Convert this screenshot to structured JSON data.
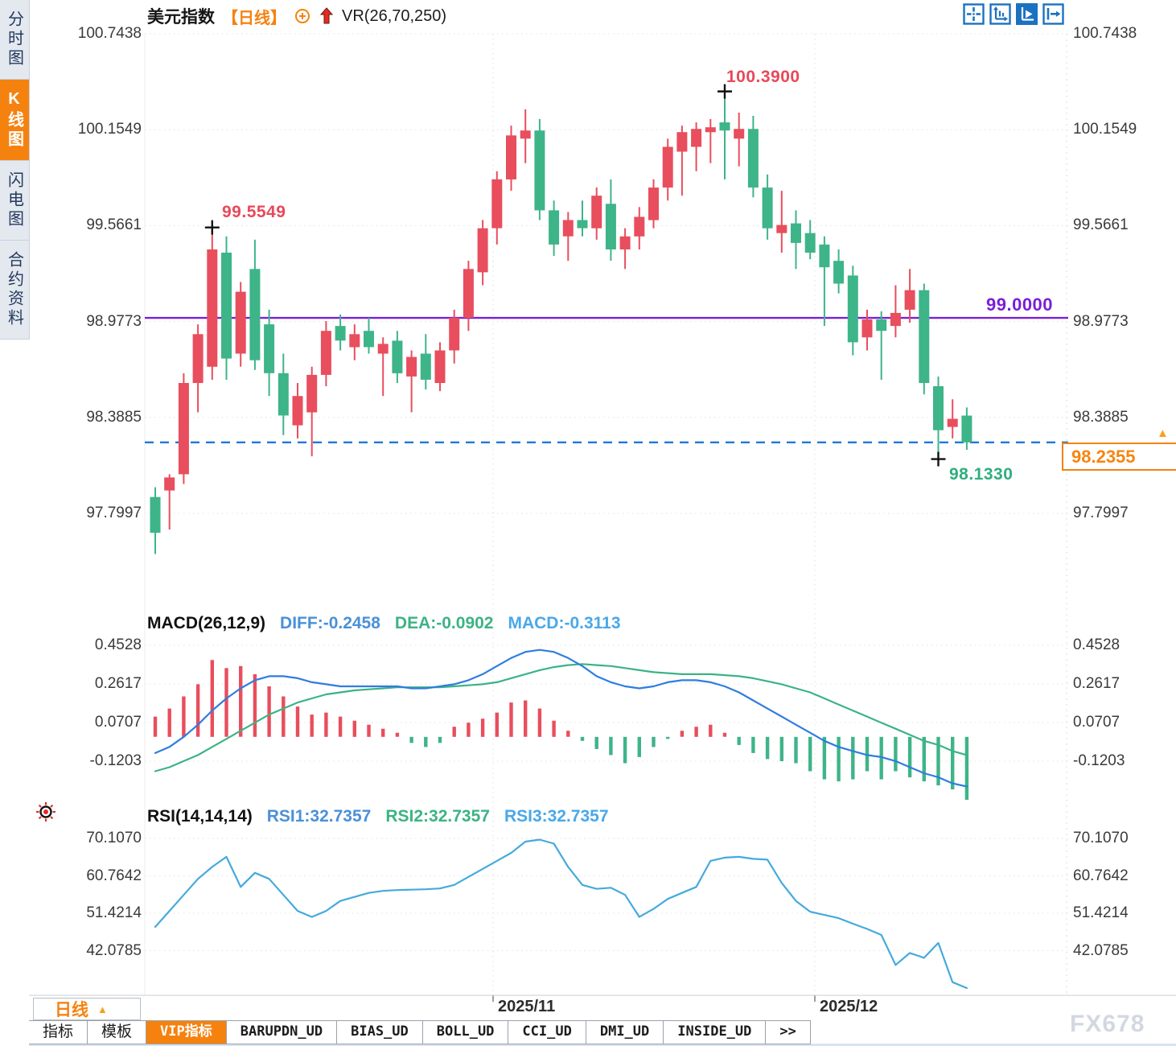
{
  "header": {
    "title": "美元指数",
    "period_tag": "【日线】",
    "vr_label": "VR(26,70,250)"
  },
  "icons": {
    "up_triangle": "▲"
  },
  "sidebar": {
    "tabs": [
      {
        "label": "分时图",
        "active": false
      },
      {
        "label": "K线图",
        "active": true
      },
      {
        "label": "闪电图",
        "active": false
      },
      {
        "label": "合约资料",
        "active": false
      }
    ]
  },
  "toolbar_icons": [
    "crosshair",
    "axis-zoom",
    "axis-play",
    "pan-right"
  ],
  "bottom": {
    "period_selector": "日线",
    "indicator_tabs": [
      {
        "label": "指标",
        "active": false
      },
      {
        "label": "模板",
        "active": false
      },
      {
        "label": "VIP指标",
        "active": true
      },
      {
        "label": "BARUPDN_UD",
        "active": false
      },
      {
        "label": "BIAS_UD",
        "active": false
      },
      {
        "label": "BOLL_UD",
        "active": false
      },
      {
        "label": "CCI_UD",
        "active": false
      },
      {
        "label": "DMI_UD",
        "active": false
      },
      {
        "label": "INSIDE_UD",
        "active": false
      },
      {
        "label": ">>",
        "active": false
      }
    ],
    "watermark": "FX678"
  },
  "chart_data": [
    {
      "type": "candlestick",
      "title": "美元指数",
      "period": "日线",
      "overlay_indicator": "VR(26,70,250)",
      "y_axis_labels": [
        "100.7438",
        "100.1549",
        "99.5661",
        "98.9773",
        "98.3885",
        "97.7997"
      ],
      "ylim": [
        97.7997,
        100.7438
      ],
      "x_axis_labels": [
        "2025/11",
        "2025/12"
      ],
      "grid": true,
      "up_color": "#e84e5d",
      "down_color": "#3eb489",
      "candles": [
        [
          97.9,
          97.96,
          97.55,
          97.68
        ],
        [
          97.94,
          98.04,
          97.7,
          98.02
        ],
        [
          98.04,
          98.66,
          97.98,
          98.6
        ],
        [
          98.6,
          98.96,
          98.42,
          98.9
        ],
        [
          98.7,
          99.5549,
          98.62,
          99.42
        ],
        [
          99.4,
          99.5,
          98.62,
          98.75
        ],
        [
          98.78,
          99.22,
          98.7,
          99.16
        ],
        [
          99.3,
          99.48,
          98.68,
          98.74
        ],
        [
          98.96,
          99.05,
          98.52,
          98.66
        ],
        [
          98.66,
          98.78,
          98.28,
          98.4
        ],
        [
          98.34,
          98.6,
          98.26,
          98.52
        ],
        [
          98.42,
          98.7,
          98.15,
          98.65
        ],
        [
          98.65,
          98.98,
          98.58,
          98.92
        ],
        [
          98.95,
          99.02,
          98.8,
          98.86
        ],
        [
          98.82,
          98.96,
          98.74,
          98.9
        ],
        [
          98.92,
          99.0,
          98.78,
          98.82
        ],
        [
          98.78,
          98.88,
          98.52,
          98.84
        ],
        [
          98.86,
          98.92,
          98.6,
          98.66
        ],
        [
          98.64,
          98.8,
          98.42,
          98.76
        ],
        [
          98.78,
          98.9,
          98.56,
          98.62
        ],
        [
          98.6,
          98.85,
          98.55,
          98.8
        ],
        [
          98.8,
          99.05,
          98.72,
          99.0
        ],
        [
          99.0,
          99.35,
          98.92,
          99.3
        ],
        [
          99.28,
          99.6,
          99.2,
          99.55
        ],
        [
          99.55,
          99.9,
          99.45,
          99.85
        ],
        [
          99.85,
          100.18,
          99.78,
          100.12
        ],
        [
          100.1,
          100.28,
          99.95,
          100.15
        ],
        [
          100.15,
          100.22,
          99.6,
          99.66
        ],
        [
          99.66,
          99.72,
          99.38,
          99.45
        ],
        [
          99.5,
          99.65,
          99.35,
          99.6
        ],
        [
          99.6,
          99.72,
          99.5,
          99.55
        ],
        [
          99.55,
          99.8,
          99.48,
          99.75
        ],
        [
          99.7,
          99.85,
          99.35,
          99.42
        ],
        [
          99.42,
          99.55,
          99.3,
          99.5
        ],
        [
          99.5,
          99.68,
          99.42,
          99.62
        ],
        [
          99.6,
          99.85,
          99.55,
          99.8
        ],
        [
          99.8,
          100.1,
          99.72,
          100.05
        ],
        [
          100.02,
          100.18,
          99.75,
          100.14
        ],
        [
          100.05,
          100.2,
          99.9,
          100.16
        ],
        [
          100.14,
          100.22,
          99.95,
          100.17
        ],
        [
          100.2,
          100.39,
          99.85,
          100.15
        ],
        [
          100.1,
          100.26,
          99.93,
          100.16
        ],
        [
          100.16,
          100.24,
          99.74,
          99.8
        ],
        [
          99.8,
          99.88,
          99.48,
          99.55
        ],
        [
          99.52,
          99.78,
          99.4,
          99.57
        ],
        [
          99.58,
          99.66,
          99.3,
          99.46
        ],
        [
          99.52,
          99.6,
          99.36,
          99.4
        ],
        [
          99.45,
          99.5,
          98.95,
          99.31
        ],
        [
          99.35,
          99.42,
          99.15,
          99.21
        ],
        [
          99.26,
          99.32,
          98.77,
          98.85
        ],
        [
          98.88,
          99.05,
          98.8,
          98.99
        ],
        [
          98.99,
          99.04,
          98.62,
          98.92
        ],
        [
          98.95,
          99.2,
          98.88,
          99.03
        ],
        [
          99.05,
          99.3,
          98.97,
          99.17
        ],
        [
          99.17,
          99.21,
          98.53,
          98.6
        ],
        [
          98.58,
          98.64,
          98.133,
          98.31
        ],
        [
          98.33,
          98.5,
          98.26,
          98.38
        ],
        [
          98.4,
          98.45,
          98.19,
          98.2355
        ]
      ],
      "annotations": {
        "high1": {
          "text": "99.5549",
          "price": 99.5549,
          "candle": 4
        },
        "high2": {
          "text": "100.3900",
          "price": 100.39,
          "candle": 40
        },
        "low": {
          "text": "98.1330",
          "price": 98.133,
          "candle": 55
        }
      },
      "support_line": {
        "label": "99.0000",
        "price": 99.0,
        "color": "#7a1ed8"
      },
      "last_price_line": {
        "label": "98.2355",
        "price": 98.2355,
        "line_color": "#1e78dc",
        "box_color": "#f5820f"
      }
    },
    {
      "type": "macd",
      "label": "MACD(26,12,9)",
      "diff_text": "DIFF:-0.2458",
      "dea_text": "DEA:-0.0902",
      "macd_text": "MACD:-0.3113",
      "y_axis_labels": [
        "0.4528",
        "0.2617",
        "0.0707",
        "-0.1203"
      ],
      "ylim": [
        -0.1203,
        0.4528
      ],
      "colors": {
        "diff": "#2e7de0",
        "dea": "#3cb385",
        "hist_up": "#e84e5d",
        "hist_down": "#3eb489"
      },
      "histogram": [
        0.1,
        0.14,
        0.2,
        0.26,
        0.38,
        0.34,
        0.35,
        0.31,
        0.25,
        0.2,
        0.15,
        0.11,
        0.12,
        0.1,
        0.08,
        0.06,
        0.04,
        0.02,
        -0.03,
        -0.05,
        -0.03,
        0.05,
        0.07,
        0.09,
        0.12,
        0.17,
        0.18,
        0.14,
        0.08,
        0.03,
        -0.02,
        -0.06,
        -0.09,
        -0.13,
        -0.1,
        -0.05,
        -0.01,
        0.03,
        0.05,
        0.06,
        0.02,
        -0.04,
        -0.08,
        -0.11,
        -0.12,
        -0.13,
        -0.17,
        -0.21,
        -0.22,
        -0.21,
        -0.17,
        -0.21,
        -0.17,
        -0.2,
        -0.22,
        -0.24,
        -0.26,
        -0.3113
      ],
      "diff_line": [
        -0.08,
        -0.05,
        0.0,
        0.06,
        0.13,
        0.19,
        0.24,
        0.28,
        0.3,
        0.3,
        0.29,
        0.27,
        0.26,
        0.25,
        0.25,
        0.25,
        0.25,
        0.25,
        0.24,
        0.24,
        0.25,
        0.26,
        0.28,
        0.31,
        0.35,
        0.39,
        0.42,
        0.43,
        0.42,
        0.39,
        0.35,
        0.3,
        0.27,
        0.25,
        0.24,
        0.25,
        0.27,
        0.28,
        0.28,
        0.27,
        0.25,
        0.22,
        0.18,
        0.14,
        0.1,
        0.06,
        0.02,
        -0.02,
        -0.05,
        -0.07,
        -0.09,
        -0.1,
        -0.12,
        -0.15,
        -0.18,
        -0.2,
        -0.23,
        -0.2458
      ],
      "dea_line": [
        -0.17,
        -0.15,
        -0.12,
        -0.09,
        -0.05,
        -0.01,
        0.03,
        0.07,
        0.11,
        0.14,
        0.17,
        0.19,
        0.21,
        0.22,
        0.23,
        0.235,
        0.24,
        0.245,
        0.245,
        0.245,
        0.245,
        0.25,
        0.255,
        0.26,
        0.27,
        0.29,
        0.31,
        0.33,
        0.345,
        0.355,
        0.36,
        0.355,
        0.35,
        0.34,
        0.33,
        0.32,
        0.315,
        0.31,
        0.31,
        0.31,
        0.305,
        0.3,
        0.29,
        0.275,
        0.26,
        0.24,
        0.22,
        0.19,
        0.16,
        0.13,
        0.1,
        0.07,
        0.04,
        0.01,
        -0.02,
        -0.04,
        -0.07,
        -0.0902
      ]
    },
    {
      "type": "rsi",
      "label": "RSI(14,14,14)",
      "rsi1_text": "RSI1:32.7357",
      "rsi2_text": "RSI2:32.7357",
      "rsi3_text": "RSI3:32.7357",
      "y_axis_labels": [
        "70.1070",
        "60.7642",
        "51.4214",
        "42.0785"
      ],
      "ylim": [
        42.0785,
        70.107
      ],
      "color": "#45aadc",
      "line": [
        48,
        52,
        56,
        60,
        63,
        65.5,
        58,
        61.5,
        60,
        56,
        52,
        50.5,
        52,
        54.5,
        55.5,
        56.5,
        57,
        57.2,
        57.3,
        57.4,
        57.6,
        58.5,
        60.5,
        62.5,
        64.5,
        66.5,
        69.3,
        69.8,
        68.8,
        63,
        58.5,
        57.5,
        57.8,
        56,
        50.5,
        52.5,
        55,
        56.5,
        58,
        64.5,
        65.3,
        65.5,
        65,
        64.8,
        59,
        54.5,
        51.8,
        51,
        50.2,
        48.8,
        47.5,
        46,
        38.5,
        41.5,
        40.3,
        44,
        34.2,
        32.7357
      ]
    }
  ]
}
